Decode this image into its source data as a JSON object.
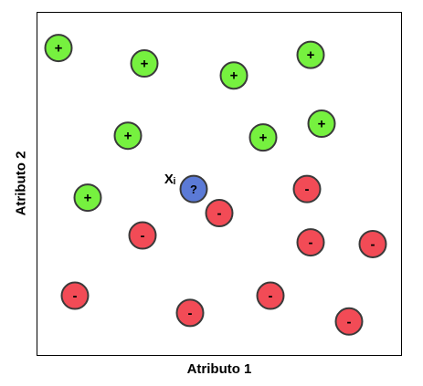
{
  "axes": {
    "x_label": "Atributo 1",
    "y_label": "Atributo 2"
  },
  "colors": {
    "positive_fill": "#76f13f",
    "negative_fill": "#f24b56",
    "query_fill": "#5b7ad6",
    "outline": "#3a3a3a"
  },
  "chart_data": {
    "type": "scatter",
    "xlabel": "Atributo 1",
    "ylabel": "Atributo 2",
    "points": [
      {
        "x": 6.0,
        "y": 89.5,
        "cls": "positive",
        "label": "+"
      },
      {
        "x": 29.5,
        "y": 85.0,
        "cls": "positive",
        "label": "+"
      },
      {
        "x": 54.0,
        "y": 81.5,
        "cls": "positive",
        "label": "+"
      },
      {
        "x": 75.0,
        "y": 87.5,
        "cls": "positive",
        "label": "+"
      },
      {
        "x": 25.0,
        "y": 64.0,
        "cls": "positive",
        "label": "+"
      },
      {
        "x": 62.0,
        "y": 63.5,
        "cls": "positive",
        "label": "+"
      },
      {
        "x": 78.0,
        "y": 67.5,
        "cls": "positive",
        "label": "+"
      },
      {
        "x": 14.0,
        "y": 46.0,
        "cls": "positive",
        "label": "+"
      },
      {
        "x": 74.0,
        "y": 48.5,
        "cls": "negative",
        "label": "-"
      },
      {
        "x": 50.0,
        "y": 41.5,
        "cls": "negative",
        "label": "-"
      },
      {
        "x": 29.0,
        "y": 35.0,
        "cls": "negative",
        "label": "-"
      },
      {
        "x": 75.0,
        "y": 33.0,
        "cls": "negative",
        "label": "-"
      },
      {
        "x": 92.0,
        "y": 32.5,
        "cls": "negative",
        "label": "-"
      },
      {
        "x": 10.5,
        "y": 17.5,
        "cls": "negative",
        "label": "-"
      },
      {
        "x": 42.0,
        "y": 12.5,
        "cls": "negative",
        "label": "-"
      },
      {
        "x": 64.0,
        "y": 17.5,
        "cls": "negative",
        "label": "-"
      },
      {
        "x": 85.5,
        "y": 10.0,
        "cls": "negative",
        "label": "-"
      },
      {
        "x": 43.0,
        "y": 48.5,
        "cls": "query",
        "label": "?",
        "name": "Xᵢ"
      }
    ],
    "xlim": [
      0,
      100
    ],
    "ylim": [
      0,
      100
    ],
    "grid": false
  }
}
